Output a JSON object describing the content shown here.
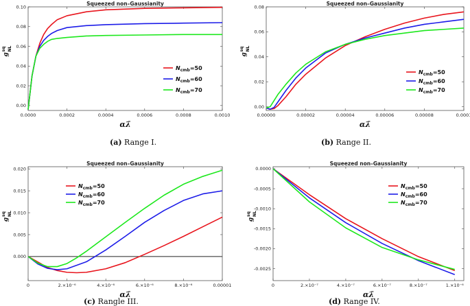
{
  "chart_data": [
    {
      "type": "line",
      "title": "Squeezed non–Gaussianity",
      "xlabel": "αλ̄",
      "ylabel": "g",
      "ylabel_sup": "sq",
      "ylabel_sub": "NL",
      "xlim": [
        0,
        0.001
      ],
      "ylim": [
        -0.005,
        0.1
      ],
      "xticks": [
        0,
        0.0002,
        0.0004,
        0.0006,
        0.0008,
        0.001
      ],
      "xtick_labels": [
        "0.0000",
        "0.0002",
        "0.0004",
        "0.0006",
        "0.0008",
        "0.0010"
      ],
      "yticks": [
        0,
        0.02,
        0.04,
        0.06,
        0.08,
        0.1
      ],
      "ytick_labels": [
        "0.00",
        "0.02",
        "0.04",
        "0.06",
        "0.08",
        "0.10"
      ],
      "legend_position": "right",
      "caption_label": "(a)",
      "caption_text": "Range I.",
      "series": [
        {
          "name": "50",
          "color": "#e8141c",
          "x": [
            0,
            2e-05,
            4e-05,
            6e-05,
            8e-05,
            0.0001,
            0.00012,
            0.00015,
            0.0002,
            0.0003,
            0.0004,
            0.0006,
            0.0008,
            0.001
          ],
          "y": [
            -0.004,
            0.03,
            0.05,
            0.063,
            0.072,
            0.078,
            0.082,
            0.087,
            0.091,
            0.095,
            0.097,
            0.0985,
            0.099,
            0.0995
          ]
        },
        {
          "name": "60",
          "color": "#1c1ce8",
          "x": [
            0,
            2e-05,
            4e-05,
            6e-05,
            8e-05,
            0.0001,
            0.00012,
            0.00015,
            0.0002,
            0.0003,
            0.0004,
            0.0006,
            0.0008,
            0.001
          ],
          "y": [
            -0.004,
            0.03,
            0.05,
            0.06,
            0.066,
            0.07,
            0.073,
            0.076,
            0.079,
            0.081,
            0.082,
            0.083,
            0.0835,
            0.084
          ]
        },
        {
          "name": "70",
          "color": "#1ce81c",
          "x": [
            0,
            2e-05,
            4e-05,
            6e-05,
            8e-05,
            0.0001,
            0.00012,
            0.00015,
            0.0002,
            0.0003,
            0.0004,
            0.0006,
            0.0008,
            0.001
          ],
          "y": [
            -0.004,
            0.03,
            0.05,
            0.058,
            0.062,
            0.065,
            0.067,
            0.068,
            0.069,
            0.0705,
            0.071,
            0.0715,
            0.072,
            0.072
          ]
        }
      ]
    },
    {
      "type": "line",
      "title": "Squeezed non–Gaussianity",
      "xlabel": "αλ̄",
      "ylabel": "g",
      "ylabel_sup": "sq",
      "ylabel_sub": "NL",
      "xlim": [
        0,
        0.0001
      ],
      "ylim": [
        -0.003,
        0.08
      ],
      "xticks": [
        0,
        2e-05,
        4e-05,
        6e-05,
        8e-05,
        0.0001
      ],
      "xtick_labels": [
        "0.00000",
        "0.00002",
        "0.00004",
        "0.00006",
        "0.00008",
        "0.0001"
      ],
      "yticks": [
        0,
        0.02,
        0.04,
        0.06,
        0.08
      ],
      "ytick_labels": [
        "0.00",
        "0.02",
        "0.04",
        "0.06",
        "0.08"
      ],
      "legend_position": "right",
      "caption_label": "(b)",
      "caption_text": "Range II.",
      "series": [
        {
          "name": "50",
          "color": "#e8141c",
          "x": [
            0,
            2e-06,
            4e-06,
            6e-06,
            1e-05,
            1.5e-05,
            2e-05,
            3e-05,
            4e-05,
            5e-05,
            6e-05,
            7e-05,
            8e-05,
            9e-05,
            0.0001
          ],
          "y": [
            -0.001,
            -0.002,
            -0.0015,
            0.001,
            0.008,
            0.018,
            0.026,
            0.039,
            0.049,
            0.056,
            0.062,
            0.067,
            0.071,
            0.074,
            0.076
          ]
        },
        {
          "name": "60",
          "color": "#1c1ce8",
          "x": [
            0,
            2e-06,
            4e-06,
            6e-06,
            1e-05,
            1.5e-05,
            2e-05,
            3e-05,
            4e-05,
            5e-05,
            6e-05,
            7e-05,
            8e-05,
            9e-05,
            0.0001
          ],
          "y": [
            -0.001,
            -0.002,
            -0.0005,
            0.004,
            0.013,
            0.023,
            0.031,
            0.043,
            0.05,
            0.055,
            0.059,
            0.063,
            0.066,
            0.068,
            0.07
          ]
        },
        {
          "name": "70",
          "color": "#1ce81c",
          "x": [
            0,
            2e-06,
            4e-06,
            6e-06,
            1e-05,
            1.5e-05,
            2e-05,
            3e-05,
            4e-05,
            5e-05,
            6e-05,
            7e-05,
            8e-05,
            9e-05,
            0.0001
          ],
          "y": [
            -0.001,
            0.0,
            0.005,
            0.01,
            0.018,
            0.027,
            0.034,
            0.044,
            0.05,
            0.054,
            0.057,
            0.059,
            0.061,
            0.062,
            0.063
          ]
        }
      ]
    },
    {
      "type": "line",
      "title": "Squeezed non–Gaussianity",
      "xlabel": "αλ̄",
      "ylabel": "g",
      "ylabel_sup": "sq",
      "ylabel_sub": "NL",
      "xlim": [
        0,
        1e-05
      ],
      "ylim": [
        -0.0055,
        0.0205
      ],
      "xticks": [
        0,
        2e-06,
        4e-06,
        6e-06,
        8e-06,
        1e-05
      ],
      "xtick_labels": [
        "0",
        "2.×10⁻⁶",
        "4.×10⁻⁶",
        "6.×10⁻⁶",
        "8.×10⁻⁶",
        "0.00001"
      ],
      "yticks": [
        0,
        0.005,
        0.01,
        0.015,
        0.02
      ],
      "ytick_labels": [
        "0.000",
        "0.005",
        "0.010",
        "0.015",
        "0.020"
      ],
      "zero_line": true,
      "legend_position": "top-left",
      "caption_label": "(c)",
      "caption_text": "Rangle III.",
      "series": [
        {
          "name": "50",
          "color": "#e8141c",
          "x": [
            0,
            1e-06,
            1.5e-06,
            2e-06,
            2.5e-06,
            3e-06,
            4e-06,
            5e-06,
            6e-06,
            7e-06,
            8e-06,
            9e-06,
            1e-05
          ],
          "y": [
            0,
            -0.0025,
            -0.0032,
            -0.0036,
            -0.0037,
            -0.0036,
            -0.0028,
            -0.0014,
            0.0005,
            0.0025,
            0.0046,
            0.0068,
            0.009
          ]
        },
        {
          "name": "60",
          "color": "#1c1ce8",
          "x": [
            0,
            5e-07,
            1e-06,
            1.5e-06,
            2e-06,
            3e-06,
            4e-06,
            5e-06,
            6e-06,
            7e-06,
            8e-06,
            9e-06,
            1e-05
          ],
          "y": [
            0,
            -0.0017,
            -0.0027,
            -0.003,
            -0.0028,
            -0.0012,
            0.0015,
            0.0046,
            0.0078,
            0.0105,
            0.0128,
            0.0143,
            0.015
          ]
        },
        {
          "name": "70",
          "color": "#1ce81c",
          "x": [
            0,
            5e-07,
            1e-06,
            1.5e-06,
            2e-06,
            2.5e-06,
            3e-06,
            4e-06,
            5e-06,
            6e-06,
            7e-06,
            8e-06,
            9e-06,
            1e-05
          ],
          "y": [
            0,
            -0.0015,
            -0.0023,
            -0.0023,
            -0.0016,
            -0.0003,
            0.0012,
            0.0045,
            0.0078,
            0.011,
            0.014,
            0.0165,
            0.0183,
            0.0197
          ]
        }
      ]
    },
    {
      "type": "line",
      "title": "Squeezed non–Gaussianity",
      "xlabel": "αλ̄",
      "ylabel": "g",
      "ylabel_sup": "sq",
      "ylabel_sub": "NL",
      "xlim": [
        0,
        1.05e-06
      ],
      "ylim": [
        -0.0028,
        5e-05
      ],
      "xticks": [
        0,
        2e-07,
        4e-07,
        6e-07,
        8e-07,
        1e-06
      ],
      "xtick_labels": [
        "0",
        "2.×10⁻⁷",
        "4.×10⁻⁷",
        "6.×10⁻⁷",
        "8.×10⁻⁷",
        "1.×10⁻⁶"
      ],
      "yticks": [
        0,
        -0.0005,
        -0.001,
        -0.0015,
        -0.002,
        -0.0025
      ],
      "ytick_labels": [
        "0.0000",
        "-0.0005",
        "-0.0010",
        "-0.0015",
        "-0.0020",
        "-0.0025"
      ],
      "legend_position": "top-right",
      "caption_label": "(d)",
      "caption_text": "Range IV.",
      "series": [
        {
          "name": "50",
          "color": "#e8141c",
          "x": [
            0,
            2e-07,
            4e-07,
            6e-07,
            8e-07,
            1e-06
          ],
          "y": [
            0,
            -0.00065,
            -0.00125,
            -0.00175,
            -0.0022,
            -0.00255
          ]
        },
        {
          "name": "60",
          "color": "#1c1ce8",
          "x": [
            0,
            2e-07,
            4e-07,
            6e-07,
            8e-07,
            1e-06
          ],
          "y": [
            0,
            -0.00073,
            -0.00135,
            -0.00187,
            -0.0023,
            -0.00265
          ]
        },
        {
          "name": "70",
          "color": "#1ce81c",
          "x": [
            0,
            2e-07,
            4e-07,
            6e-07,
            8e-07,
            1e-06
          ],
          "y": [
            0,
            -0.00083,
            -0.00148,
            -0.00197,
            -0.00228,
            -0.00252
          ]
        }
      ]
    }
  ],
  "legend_prefix": "N",
  "legend_sub": "cmb",
  "legend_sep": "="
}
